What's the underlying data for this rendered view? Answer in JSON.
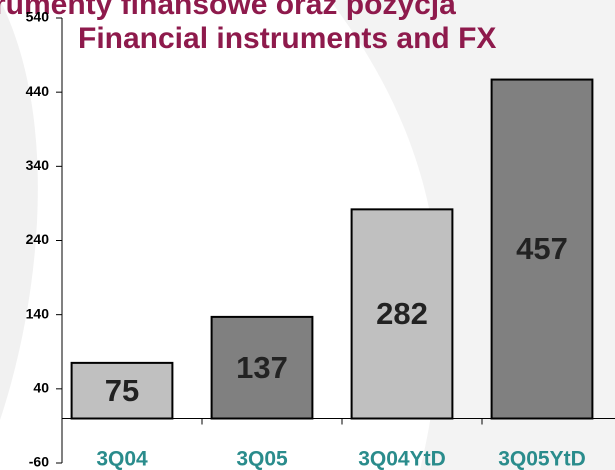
{
  "chart_data": {
    "type": "bar",
    "title": "rumenty finansowe oraz pozycja",
    "subtitle": "Financial instruments and FX",
    "categories": [
      "3Q04",
      "3Q05",
      "3Q04YtD",
      "3Q05YtD"
    ],
    "values": [
      75,
      137,
      282,
      457
    ],
    "colors": [
      "#c0c0c0",
      "#808080",
      "#c0c0c0",
      "#808080"
    ],
    "ylim": [
      -60,
      540
    ],
    "yticks": [
      -60,
      40,
      140,
      240,
      340,
      440,
      540
    ],
    "grid": false
  }
}
